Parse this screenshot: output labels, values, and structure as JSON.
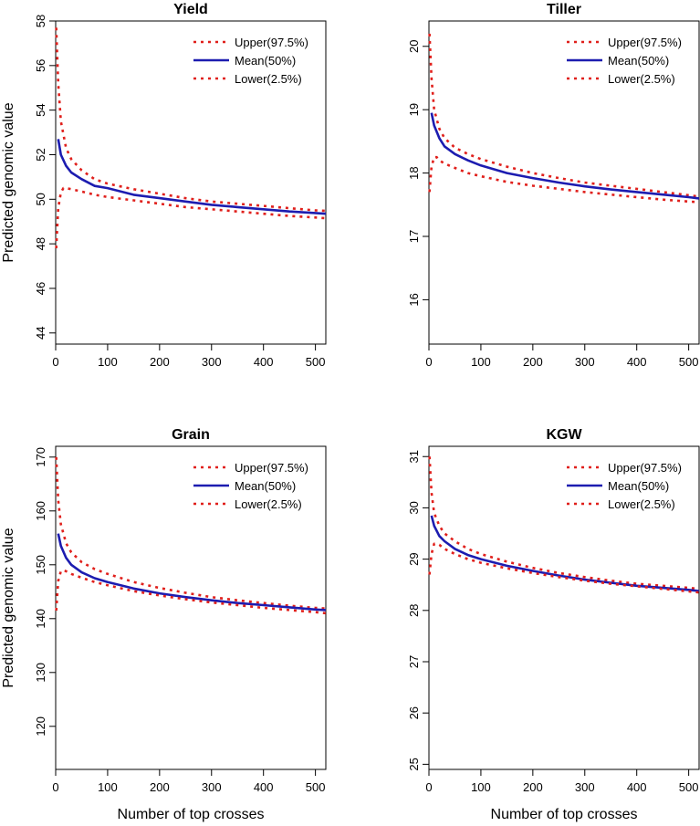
{
  "figure": {
    "ylabel": "Predicted genomic value",
    "xlabel": "Number of top crosses",
    "legend_labels": [
      "Upper(97.5%)",
      "Mean(50%)",
      "Lower(2.5%)"
    ]
  },
  "colors": {
    "upper": "#e0201c",
    "mean": "#1c1cb0",
    "lower": "#e0201c",
    "axis": "#000000"
  },
  "chart_data": [
    {
      "type": "line",
      "title": "Yield",
      "xlabel": "Number of top crosses",
      "ylabel": "Predicted genomic value",
      "xlim": [
        0,
        520
      ],
      "ylim": [
        43.5,
        58
      ],
      "xticks": [
        0,
        100,
        200,
        300,
        400,
        500
      ],
      "yticks": [
        44,
        46,
        48,
        50,
        52,
        54,
        56,
        58
      ],
      "legend": "top-right",
      "series": [
        {
          "name": "Upper(97.5%)",
          "style": "dotted",
          "x": [
            1,
            5,
            10,
            20,
            30,
            50,
            75,
            100,
            150,
            200,
            250,
            300,
            350,
            400,
            450,
            500,
            520
          ],
          "y": [
            57.7,
            55.2,
            53.5,
            52.3,
            51.8,
            51.3,
            50.9,
            50.7,
            50.45,
            50.25,
            50.05,
            49.9,
            49.8,
            49.7,
            49.6,
            49.5,
            49.48
          ]
        },
        {
          "name": "Mean(50%)",
          "style": "solid",
          "x": [
            5,
            10,
            20,
            30,
            50,
            75,
            100,
            150,
            200,
            250,
            300,
            350,
            400,
            450,
            500,
            520
          ],
          "y": [
            52.7,
            52.0,
            51.5,
            51.2,
            50.9,
            50.6,
            50.5,
            50.2,
            50.05,
            49.9,
            49.75,
            49.65,
            49.55,
            49.45,
            49.38,
            49.35
          ]
        },
        {
          "name": "Lower(2.5%)",
          "style": "dotted",
          "x": [
            1,
            5,
            10,
            15,
            20,
            30,
            50,
            75,
            100,
            150,
            200,
            250,
            300,
            350,
            400,
            450,
            500,
            520
          ],
          "y": [
            47.8,
            49.6,
            50.3,
            50.5,
            50.5,
            50.45,
            50.35,
            50.2,
            50.1,
            49.95,
            49.8,
            49.65,
            49.55,
            49.45,
            49.35,
            49.25,
            49.18,
            49.15
          ]
        }
      ]
    },
    {
      "type": "line",
      "title": "Tiller",
      "xlabel": "Number of top crosses",
      "ylabel": "Predicted genomic value",
      "xlim": [
        0,
        520
      ],
      "ylim": [
        15.3,
        20.4
      ],
      "xticks": [
        0,
        100,
        200,
        300,
        400,
        500
      ],
      "yticks": [
        16,
        17,
        18,
        19,
        20
      ],
      "legend": "top-right",
      "series": [
        {
          "name": "Upper(97.5%)",
          "style": "dotted",
          "x": [
            1,
            5,
            10,
            20,
            30,
            50,
            75,
            100,
            150,
            200,
            250,
            300,
            350,
            400,
            450,
            500,
            520
          ],
          "y": [
            20.2,
            19.5,
            19.0,
            18.7,
            18.55,
            18.4,
            18.3,
            18.22,
            18.1,
            18.0,
            17.92,
            17.85,
            17.8,
            17.75,
            17.7,
            17.65,
            17.63
          ]
        },
        {
          "name": "Mean(50%)",
          "style": "solid",
          "x": [
            5,
            10,
            20,
            30,
            50,
            75,
            100,
            150,
            200,
            250,
            300,
            350,
            400,
            450,
            500,
            520
          ],
          "y": [
            18.95,
            18.75,
            18.55,
            18.42,
            18.3,
            18.2,
            18.12,
            18.0,
            17.92,
            17.85,
            17.79,
            17.74,
            17.7,
            17.66,
            17.62,
            17.6
          ]
        },
        {
          "name": "Lower(2.5%)",
          "style": "dotted",
          "x": [
            1,
            5,
            10,
            15,
            20,
            30,
            50,
            75,
            100,
            150,
            200,
            250,
            300,
            350,
            400,
            450,
            500,
            520
          ],
          "y": [
            17.7,
            18.1,
            18.25,
            18.25,
            18.2,
            18.15,
            18.08,
            18.0,
            17.95,
            17.86,
            17.8,
            17.75,
            17.7,
            17.66,
            17.62,
            17.58,
            17.55,
            17.54
          ]
        }
      ]
    },
    {
      "type": "line",
      "title": "Grain",
      "xlabel": "Number of top crosses",
      "ylabel": "Predicted genomic value",
      "xlim": [
        0,
        520
      ],
      "ylim": [
        112,
        172
      ],
      "xticks": [
        0,
        100,
        200,
        300,
        400,
        500
      ],
      "yticks": [
        120,
        130,
        140,
        150,
        160,
        170
      ],
      "legend": "top-right",
      "series": [
        {
          "name": "Upper(97.5%)",
          "style": "dotted",
          "x": [
            1,
            5,
            10,
            20,
            30,
            50,
            75,
            100,
            150,
            200,
            250,
            300,
            350,
            400,
            450,
            500,
            520
          ],
          "y": [
            170.0,
            162.0,
            157.5,
            154.0,
            152.3,
            150.5,
            149.2,
            148.3,
            146.8,
            145.7,
            144.8,
            144.0,
            143.4,
            142.9,
            142.4,
            142.0,
            141.9
          ]
        },
        {
          "name": "Mean(50%)",
          "style": "solid",
          "x": [
            5,
            10,
            20,
            30,
            50,
            75,
            100,
            150,
            200,
            250,
            300,
            350,
            400,
            450,
            500,
            520
          ],
          "y": [
            155.8,
            153.5,
            151.3,
            150.0,
            148.6,
            147.5,
            146.8,
            145.6,
            144.7,
            144.0,
            143.4,
            142.9,
            142.5,
            142.1,
            141.7,
            141.6
          ]
        },
        {
          "name": "Lower(2.5%)",
          "style": "dotted",
          "x": [
            1,
            5,
            10,
            15,
            20,
            30,
            50,
            75,
            100,
            150,
            200,
            250,
            300,
            350,
            400,
            450,
            500,
            520
          ],
          "y": [
            141.5,
            147.0,
            148.8,
            149.0,
            148.8,
            148.3,
            147.6,
            146.8,
            146.2,
            145.1,
            144.3,
            143.6,
            143.0,
            142.5,
            142.0,
            141.6,
            141.2,
            141.0
          ]
        }
      ]
    },
    {
      "type": "line",
      "title": "KGW",
      "xlabel": "Number of top crosses",
      "ylabel": "Predicted genomic value",
      "xlim": [
        0,
        520
      ],
      "ylim": [
        24.9,
        31.2
      ],
      "xticks": [
        0,
        100,
        200,
        300,
        400,
        500
      ],
      "yticks": [
        25,
        26,
        27,
        28,
        29,
        30,
        31
      ],
      "legend": "top-right",
      "series": [
        {
          "name": "Upper(97.5%)",
          "style": "dotted",
          "x": [
            1,
            5,
            10,
            20,
            30,
            50,
            75,
            100,
            150,
            200,
            250,
            300,
            350,
            400,
            450,
            500,
            520
          ],
          "y": [
            31.0,
            30.3,
            29.9,
            29.65,
            29.5,
            29.35,
            29.2,
            29.1,
            28.95,
            28.83,
            28.73,
            28.65,
            28.58,
            28.52,
            28.48,
            28.44,
            28.42
          ]
        },
        {
          "name": "Mean(50%)",
          "style": "solid",
          "x": [
            5,
            10,
            20,
            30,
            50,
            75,
            100,
            150,
            200,
            250,
            300,
            350,
            400,
            450,
            500,
            520
          ],
          "y": [
            29.85,
            29.65,
            29.45,
            29.35,
            29.2,
            29.08,
            29.0,
            28.87,
            28.77,
            28.68,
            28.6,
            28.54,
            28.48,
            28.44,
            28.4,
            28.38
          ]
        },
        {
          "name": "Lower(2.5%)",
          "style": "dotted",
          "x": [
            1,
            5,
            10,
            15,
            20,
            30,
            50,
            75,
            100,
            150,
            200,
            250,
            300,
            350,
            400,
            450,
            500,
            520
          ],
          "y": [
            28.7,
            29.1,
            29.3,
            29.3,
            29.28,
            29.2,
            29.1,
            29.0,
            28.93,
            28.82,
            28.73,
            28.65,
            28.58,
            28.52,
            28.47,
            28.42,
            28.37,
            28.35
          ]
        }
      ]
    }
  ]
}
